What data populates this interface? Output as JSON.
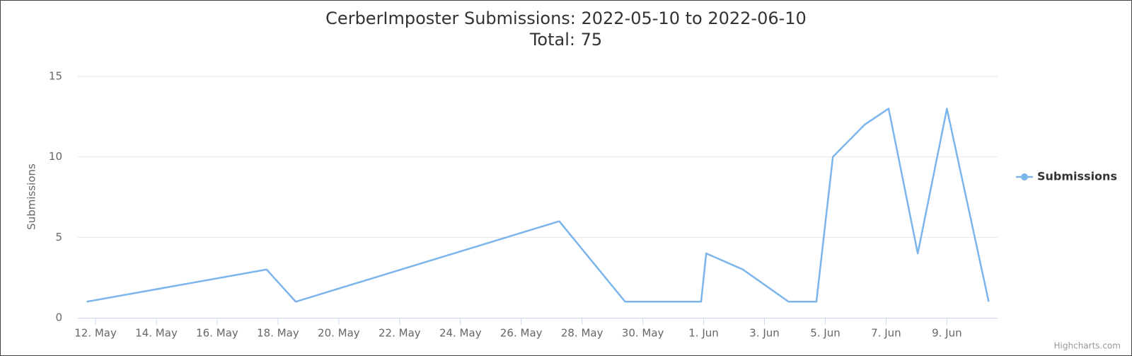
{
  "chart_data": {
    "type": "line",
    "title": "CerberImposter Submissions: 2022-05-10 to 2022-06-10",
    "subtitle": "Total: 75",
    "y_label": "Submissions",
    "credits": "Highcharts.com",
    "legend": "right",
    "grid": true,
    "x": [
      "2022-05-11T17:00",
      "2022-05-17T15:00",
      "2022-05-18T14:00",
      "2022-05-27T06:00",
      "2022-05-29T10:00",
      "2022-05-31T22:00",
      "2022-06-01T02:00",
      "2022-06-02T07:00",
      "2022-06-03T19:00",
      "2022-06-04T17:00",
      "2022-06-05T06:00",
      "2022-06-06T07:00",
      "2022-06-07T02:00",
      "2022-06-08T01:00",
      "2022-06-09T00:00",
      "2022-06-10T09:00"
    ],
    "series": [
      {
        "name": "Submissions",
        "color": "#7cb5ec",
        "values": [
          1,
          3,
          1,
          6,
          1,
          1,
          4,
          3,
          1,
          1,
          10,
          12,
          13,
          4,
          13,
          1
        ]
      }
    ],
    "xlim": [
      "2022-05-11T10:00",
      "2022-06-10T16:00"
    ],
    "xticks": [
      {
        "value": "2022-05-12T00:00",
        "label": "12. May"
      },
      {
        "value": "2022-05-14T00:00",
        "label": "14. May"
      },
      {
        "value": "2022-05-16T00:00",
        "label": "16. May"
      },
      {
        "value": "2022-05-18T00:00",
        "label": "18. May"
      },
      {
        "value": "2022-05-20T00:00",
        "label": "20. May"
      },
      {
        "value": "2022-05-22T00:00",
        "label": "22. May"
      },
      {
        "value": "2022-05-24T00:00",
        "label": "24. May"
      },
      {
        "value": "2022-05-26T00:00",
        "label": "26. May"
      },
      {
        "value": "2022-05-28T00:00",
        "label": "28. May"
      },
      {
        "value": "2022-05-30T00:00",
        "label": "30. May"
      },
      {
        "value": "2022-06-01T00:00",
        "label": "1. Jun"
      },
      {
        "value": "2022-06-03T00:00",
        "label": "3. Jun"
      },
      {
        "value": "2022-06-05T00:00",
        "label": "5. Jun"
      },
      {
        "value": "2022-06-07T00:00",
        "label": "7. Jun"
      },
      {
        "value": "2022-06-09T00:00",
        "label": "9. Jun"
      }
    ],
    "ylim": [
      0,
      15
    ],
    "yticks": [
      0,
      5,
      10,
      15
    ]
  }
}
